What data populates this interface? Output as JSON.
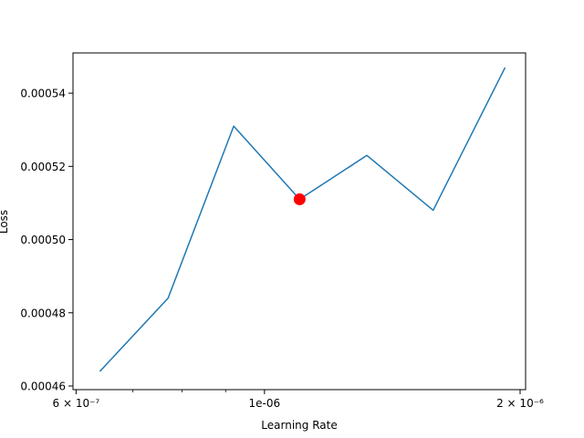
{
  "chart_data": {
    "type": "line",
    "title": "",
    "xlabel": "Learning Rate",
    "ylabel": "Loss",
    "x_scale": "log",
    "xlim": [
      5.95e-07,
      2.03e-06
    ],
    "ylim": [
      0.000459,
      0.000551
    ],
    "grid": false,
    "legend": "none",
    "x_ticks": [
      {
        "value": 6e-07,
        "label": "6 × 10⁻⁷"
      },
      {
        "value": 1e-06,
        "label": "1e-06"
      },
      {
        "value": 2e-06,
        "label": "2 × 10⁻⁶"
      }
    ],
    "x_minor_ticks": [
      7e-07,
      8e-07,
      9e-07
    ],
    "y_ticks": [
      {
        "value": 0.00046,
        "label": "0.00046"
      },
      {
        "value": 0.00048,
        "label": "0.00048"
      },
      {
        "value": 0.0005,
        "label": "0.00050"
      },
      {
        "value": 0.00052,
        "label": "0.00052"
      },
      {
        "value": 0.00054,
        "label": "0.00054"
      }
    ],
    "series": [
      {
        "color": "#1f77b4",
        "x": [
          6.4e-07,
          7.7e-07,
          9.2e-07,
          1.1e-06,
          1.32e-06,
          1.58e-06,
          1.92e-06
        ],
        "y": [
          0.000464,
          0.000484,
          0.000531,
          0.000511,
          0.000523,
          0.000508,
          0.000547
        ]
      }
    ],
    "marker": {
      "x": 1.1e-06,
      "y": 0.000511,
      "color": "#ff0000"
    }
  }
}
